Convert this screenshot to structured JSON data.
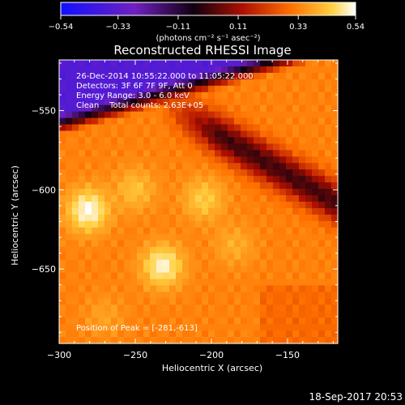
{
  "chart_data": {
    "type": "heatmap",
    "title": "Reconstructed RHESSI Image",
    "xlabel": "Heliocentric X (arcsec)",
    "ylabel": "Heliocentric Y (arcsec)",
    "x_range": [
      -300,
      -117
    ],
    "y_range": [
      -697,
      -518
    ],
    "x_ticks": [
      "−300",
      "−250",
      "−200",
      "−150"
    ],
    "x_tick_values": [
      -300,
      -250,
      -200,
      -150
    ],
    "y_ticks": [
      "−550",
      "−600",
      "−650"
    ],
    "y_tick_values": [
      -550,
      -600,
      -650
    ],
    "colorbar": {
      "min": -0.54,
      "max": 0.54,
      "ticks": [
        "−0.54",
        "−0.33",
        "−0.11",
        "0.11",
        "0.33",
        "0.54"
      ],
      "tick_values": [
        -0.54,
        -0.33,
        -0.11,
        0.11,
        0.33,
        0.54
      ],
      "units_label": "(photons cm⁻² s⁻¹ asec⁻²)",
      "colormap": "blue-purple-black-red-orange-yellow-white"
    },
    "annotations": [
      "26-Dec-2014 10:55:22.000 to 11:05:22.000",
      "Detectors: 3F 6F 7F 9F, Att 0",
      "Energy Range: 3.0 - 6.0 keV",
      "Clean    Total counts: 2.63E+05"
    ],
    "peak_label": "Position of Peak = [-281,-613]",
    "peak_position": [
      -281,
      -613
    ],
    "value_model": {
      "background_level": 0.33,
      "dark_region_level": -0.35,
      "dark_ridge_level": 0.0,
      "source_peaks": [
        {
          "x": -281,
          "y": -613,
          "value": 0.54
        },
        {
          "x": -232,
          "y": -648,
          "value": 0.52
        },
        {
          "x": -205,
          "y": -606,
          "value": 0.45
        },
        {
          "x": -250,
          "y": -600,
          "value": 0.43
        },
        {
          "x": -185,
          "y": -635,
          "value": 0.4
        },
        {
          "x": -270,
          "y": -680,
          "value": 0.38
        }
      ]
    }
  },
  "footer": {
    "date": "18-Sep-2017 20:53"
  }
}
